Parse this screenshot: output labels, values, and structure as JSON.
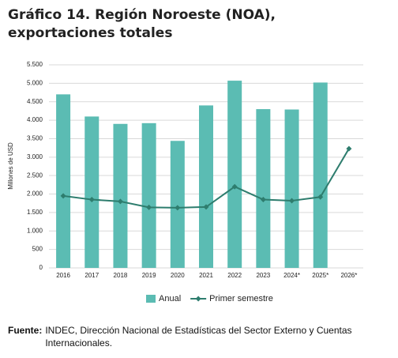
{
  "chart_data": {
    "type": "bar_line",
    "title": "Gráfico 14. Región Noroeste (NOA), exportaciones totales",
    "y_label": "Millones de USD",
    "categories": [
      "2016",
      "2017",
      "2018",
      "2019",
      "2020",
      "2021",
      "2022",
      "2023",
      "2024*",
      "2025*",
      "2026*"
    ],
    "series": [
      {
        "name": "Anual",
        "type": "bar",
        "color": "#5bbcb3",
        "values": [
          4700,
          4100,
          3900,
          3920,
          3440,
          4400,
          5070,
          4300,
          4290,
          5020,
          null
        ]
      },
      {
        "name": "Primer semestre",
        "type": "line",
        "color": "#2e7d6e",
        "values": [
          1950,
          1850,
          1800,
          1640,
          1630,
          1650,
          2200,
          1850,
          1820,
          1920,
          3230
        ]
      }
    ],
    "ylim": [
      0,
      5500
    ],
    "yticks": [
      0,
      500,
      {
        "value": 1000,
        "label": "1.000"
      },
      {
        "value": 1500,
        "label": "1.500"
      },
      {
        "value": 2000,
        "label": "2.000"
      },
      {
        "value": 2500,
        "label": "2.500"
      },
      {
        "value": 3000,
        "label": "3.000"
      },
      {
        "value": 3500,
        "label": "3.500"
      },
      {
        "value": 4000,
        "label": "4.000"
      },
      {
        "value": 4500,
        "label": "4.500"
      },
      {
        "value": 5000,
        "label": "5.000"
      },
      {
        "value": 5500,
        "label": "5.500"
      }
    ],
    "grid": true
  },
  "source_label": "Fuente:",
  "source": "INDEC, Dirección Nacional de Estadísticas del Sector Externo y Cuentas Internacionales."
}
